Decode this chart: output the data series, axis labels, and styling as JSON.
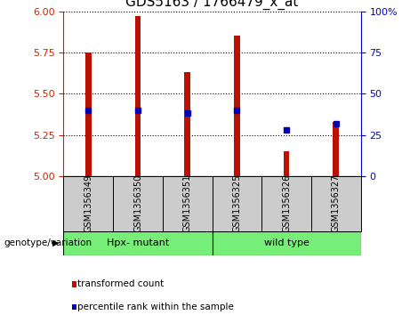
{
  "title": "GDS5163 / 1766479_x_at",
  "samples": [
    "GSM1356349",
    "GSM1356350",
    "GSM1356351",
    "GSM1356325",
    "GSM1356326",
    "GSM1356327"
  ],
  "transformed_counts": [
    5.75,
    5.97,
    5.63,
    5.85,
    5.15,
    5.33
  ],
  "percentile_ranks": [
    40,
    40,
    38,
    40,
    28,
    32
  ],
  "ylim_left": [
    5.0,
    6.0
  ],
  "ylim_right": [
    0,
    100
  ],
  "yticks_left": [
    5.0,
    5.25,
    5.5,
    5.75,
    6.0
  ],
  "yticks_right": [
    0,
    25,
    50,
    75,
    100
  ],
  "bar_color": "#bb1100",
  "dot_color": "#0000bb",
  "group1_label": "Hpx- mutant",
  "group2_label": "wild type",
  "group1_indices": [
    0,
    1,
    2
  ],
  "group2_indices": [
    3,
    4,
    5
  ],
  "group_color": "#77ee77",
  "legend_bar_label": "transformed count",
  "legend_dot_label": "percentile rank within the sample",
  "xlabel_genotype": "genotype/variation",
  "tick_color_left": "#cc2200",
  "tick_color_right": "#0000cc",
  "title_fontsize": 11,
  "bar_base": 5.0,
  "bar_width": 0.12
}
